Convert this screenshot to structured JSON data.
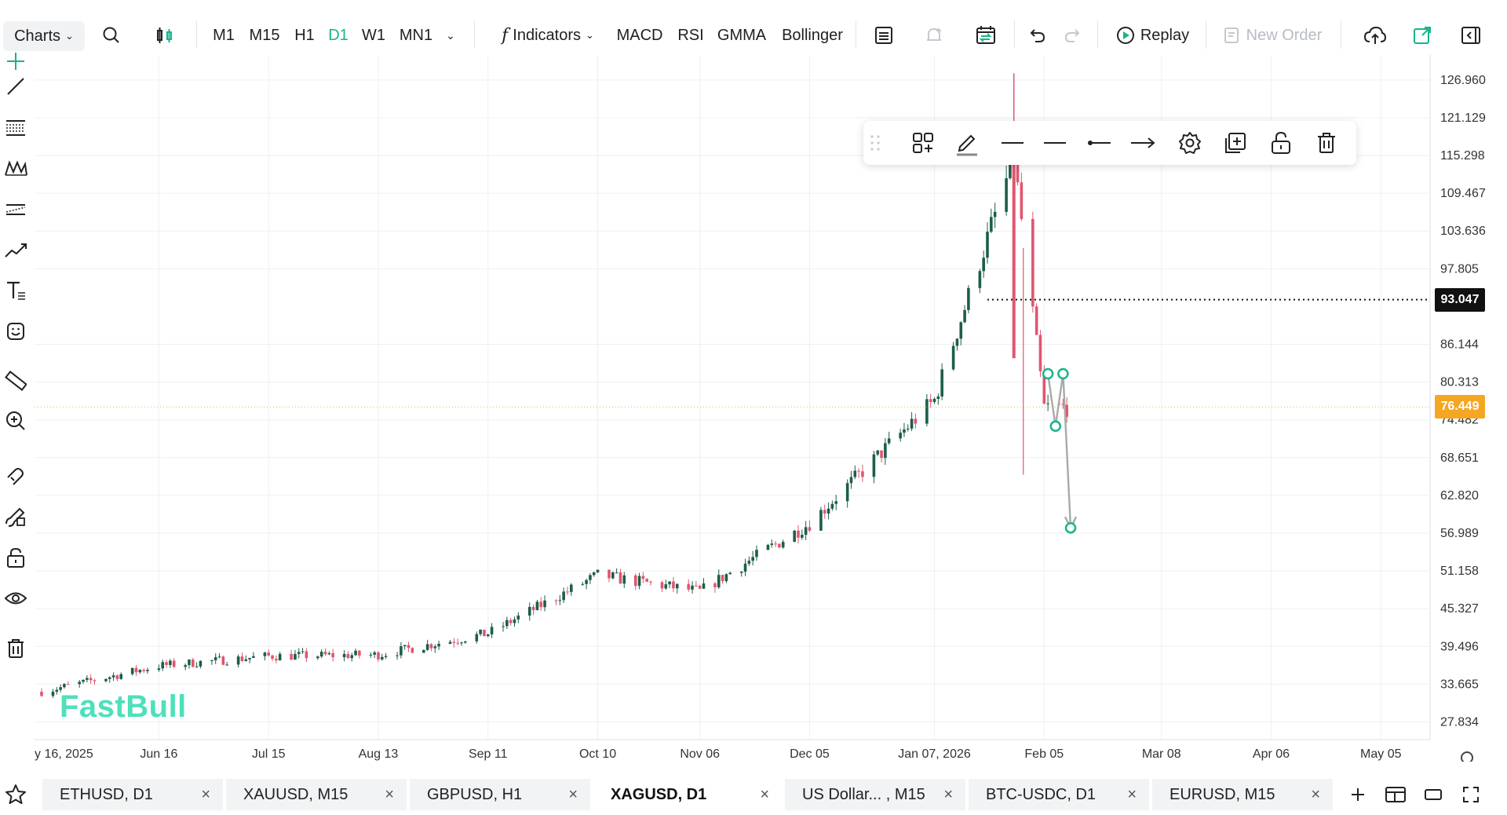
{
  "toolbar": {
    "charts_label": "Charts",
    "timeframes": [
      "M1",
      "M15",
      "H1",
      "D1",
      "W1",
      "MN1"
    ],
    "active_timeframe": "D1",
    "indicators_label": "Indicators",
    "indicator_shortcuts": [
      "MACD",
      "RSI",
      "GMMA",
      "Bollinger"
    ],
    "replay_label": "Replay",
    "new_order_label": "New Order"
  },
  "chart": {
    "watermark": "FastBull",
    "price_ticks": [
      "126.960",
      "121.129",
      "115.298",
      "109.467",
      "103.636",
      "97.805",
      "86.144",
      "80.313",
      "74.482",
      "68.651",
      "62.820",
      "56.989",
      "51.158",
      "45.327",
      "39.496",
      "33.665",
      "27.834"
    ],
    "date_ticks": [
      "y 16, 2025",
      "Jun 16",
      "Jul 15",
      "Aug 13",
      "Sep 11",
      "Oct 10",
      "Nov 06",
      "Dec 05",
      "Jan 07, 2026",
      "Feb 05",
      "Mar 08",
      "Apr 06",
      "May 05"
    ],
    "crosshair_price": "93.047",
    "current_price": "76.449",
    "colors": {
      "up": "#1d5e48",
      "down": "#e0566f",
      "accent": "#16b58d",
      "current_price_badge": "#f5a623",
      "crosshair_badge": "#111111"
    }
  },
  "chart_data": {
    "type": "candlestick",
    "symbol": "XAGUSD",
    "timeframe": "D1",
    "y_range": [
      24.5,
      129
    ],
    "closes_approx": [
      {
        "date": "2025-06-16",
        "close": 36.5
      },
      {
        "date": "2025-07-15",
        "close": 38.0
      },
      {
        "date": "2025-08-13",
        "close": 38.2
      },
      {
        "date": "2025-09-11",
        "close": 41.5
      },
      {
        "date": "2025-10-10",
        "close": 50.5
      },
      {
        "date": "2025-11-06",
        "close": 48.0
      },
      {
        "date": "2025-12-05",
        "close": 58.5
      },
      {
        "date": "2026-01-07",
        "close": 77.5
      },
      {
        "date": "2026-01-28",
        "close": 115.0
      },
      {
        "date": "2026-02-05",
        "close": 76.4
      }
    ],
    "drawing": {
      "type": "path",
      "points": [
        81.6,
        73.5,
        81.6,
        57.8
      ]
    }
  },
  "floating_toolbar": {
    "tools": [
      "template-icon",
      "pencil-icon",
      "line-style-icon",
      "line-width-icon",
      "line-start-icon",
      "line-end-icon",
      "settings-icon",
      "clone-icon",
      "lock-icon",
      "delete-icon"
    ]
  },
  "left_tools": [
    "crosshair-icon",
    "trend-line-icon",
    "fib-icon",
    "pattern-icon",
    "channel-icon",
    "prediction-icon",
    "text-icon",
    "emoji-icon",
    "ruler-icon",
    "zoom-in-icon",
    "magnet-icon",
    "brush-icon",
    "lock-icon",
    "eye-icon",
    "trash-icon",
    "star-icon"
  ],
  "tabs": [
    {
      "label": "ETHUSD, D1"
    },
    {
      "label": "XAUUSD, M15"
    },
    {
      "label": "GBPUSD, H1"
    },
    {
      "label": "XAGUSD, D1",
      "active": true
    },
    {
      "label": "US Dollar... , M15"
    },
    {
      "label": "BTC-USDC, D1"
    },
    {
      "label": "EURUSD, M15"
    }
  ],
  "tab_close_glyph": "×"
}
